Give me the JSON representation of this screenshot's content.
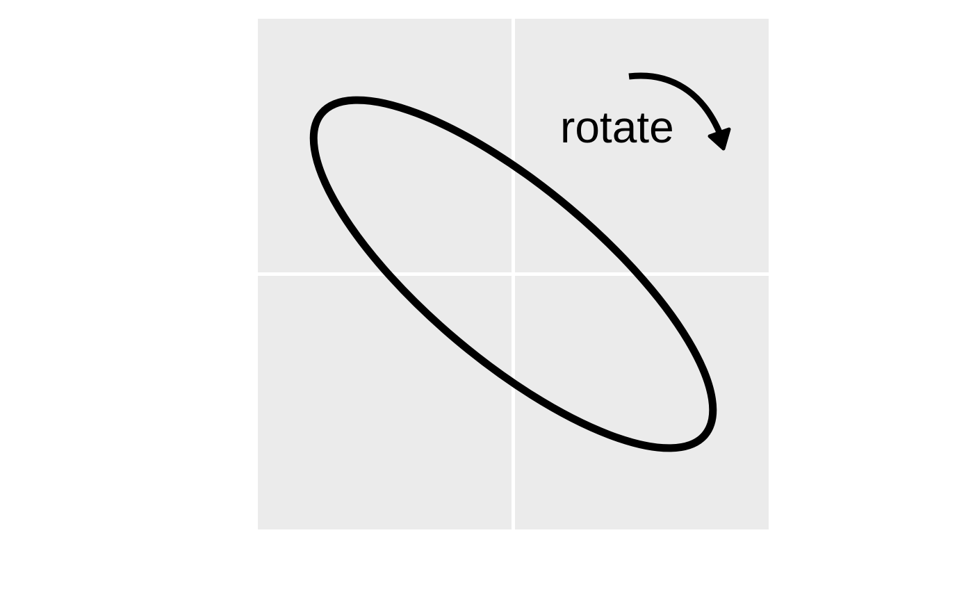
{
  "annotation": {
    "text": "rotate"
  },
  "colors": {
    "panel_background": "#EBEBEB",
    "grid_line": "#FFFFFF",
    "stroke": "#000000",
    "page_background": "#FFFFFF"
  },
  "shapes": {
    "ellipse": "rotated-ellipse-outline",
    "arrow": "clockwise-curved-arrow"
  }
}
